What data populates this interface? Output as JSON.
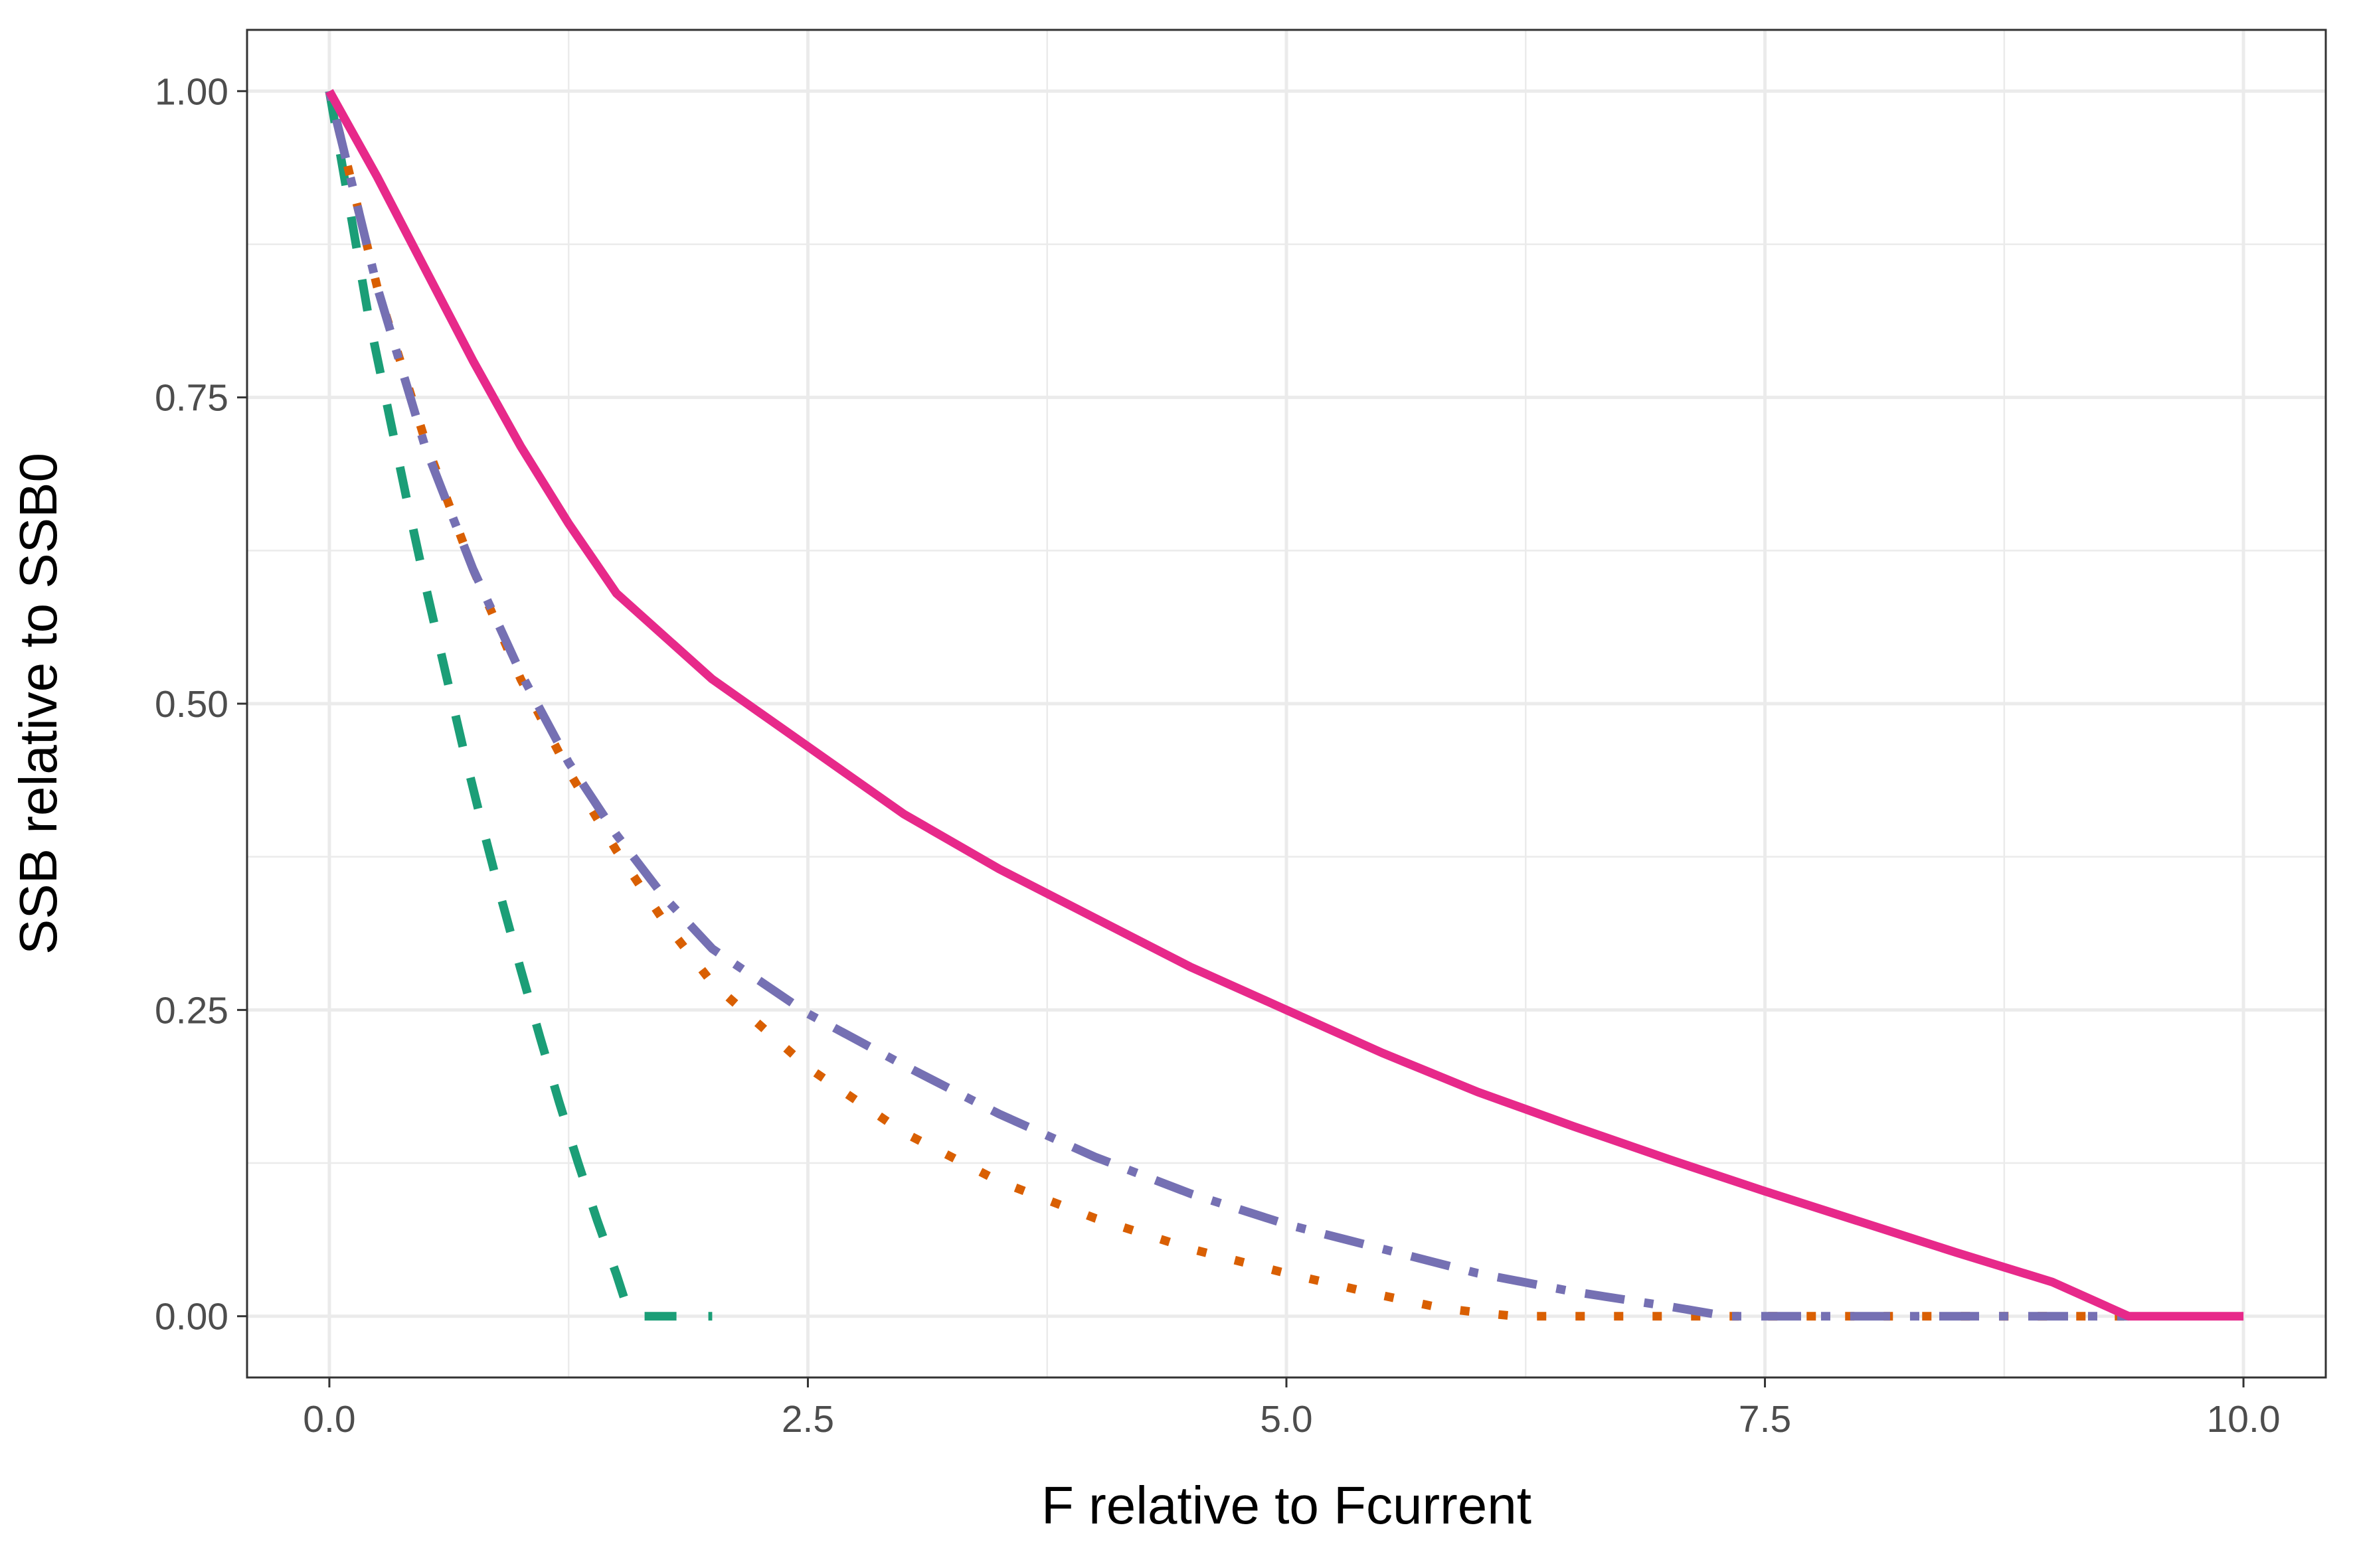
{
  "chart_data": {
    "type": "line",
    "title": "",
    "xlabel": "F relative to Fcurrent",
    "ylabel": "SSB relative to SSB0",
    "xlim": [
      -0.43,
      10.43
    ],
    "ylim": [
      -0.05,
      1.05
    ],
    "x_ticks": [
      "0.0",
      "2.5",
      "5.0",
      "7.5",
      "10.0"
    ],
    "x_tick_values": [
      0,
      2.5,
      5,
      7.5,
      10
    ],
    "y_ticks": [
      "0.00",
      "0.25",
      "0.50",
      "0.75",
      "1.00"
    ],
    "y_tick_values": [
      0,
      0.25,
      0.5,
      0.75,
      1
    ],
    "grid": true,
    "legend": "none",
    "series": [
      {
        "color": "#1B9E77",
        "linetype": "dashed",
        "x": [
          0,
          0.1,
          0.2,
          0.3,
          0.4,
          0.5,
          0.6,
          0.7,
          0.8,
          0.9,
          1.0,
          1.1,
          1.2,
          1.3,
          1.4,
          1.5,
          1.55,
          1.6,
          1.7,
          1.8,
          1.9,
          2.0
        ],
        "y": [
          1.0,
          0.91,
          0.82,
          0.745,
          0.67,
          0.598,
          0.53,
          0.463,
          0.4,
          0.34,
          0.283,
          0.228,
          0.175,
          0.125,
          0.078,
          0.034,
          0.01,
          0,
          0,
          0,
          0,
          0
        ]
      },
      {
        "color": "#D95F02",
        "linetype": "dotted",
        "x": [
          0,
          0.25,
          0.5,
          0.75,
          1.0,
          1.25,
          1.5,
          1.75,
          2.0,
          2.5,
          3.0,
          3.5,
          4.0,
          4.5,
          5.0,
          5.5,
          5.8,
          6.0,
          6.2,
          7.0,
          8.0,
          9.0,
          9.4
        ],
        "y": [
          1.0,
          0.84,
          0.715,
          0.61,
          0.52,
          0.445,
          0.38,
          0.322,
          0.272,
          0.203,
          0.15,
          0.11,
          0.08,
          0.055,
          0.035,
          0.017,
          0.007,
          0.003,
          0,
          0,
          0,
          0,
          0
        ]
      },
      {
        "color": "#7570B3",
        "linetype": "dotdash",
        "x": [
          0,
          0.25,
          0.5,
          0.75,
          1.0,
          1.25,
          1.5,
          1.75,
          2.0,
          2.5,
          3.0,
          3.5,
          4.0,
          4.5,
          5.0,
          5.5,
          6.0,
          6.5,
          7.0,
          7.3,
          8.0,
          9.0,
          9.4
        ],
        "y": [
          1.0,
          0.84,
          0.71,
          0.61,
          0.525,
          0.452,
          0.393,
          0.342,
          0.3,
          0.247,
          0.205,
          0.165,
          0.13,
          0.1,
          0.075,
          0.055,
          0.035,
          0.02,
          0.008,
          0,
          0,
          0,
          0
        ]
      },
      {
        "color": "#E7298A",
        "linetype": "solid",
        "x": [
          0,
          0.25,
          0.5,
          0.75,
          1.0,
          1.25,
          1.5,
          2.0,
          2.5,
          3.0,
          3.5,
          4.0,
          4.5,
          5.0,
          5.5,
          6.0,
          6.5,
          7.0,
          7.5,
          8.0,
          8.5,
          9.0,
          9.4,
          10.0
        ],
        "y": [
          1.0,
          0.93,
          0.855,
          0.78,
          0.71,
          0.647,
          0.59,
          0.52,
          0.465,
          0.41,
          0.365,
          0.325,
          0.285,
          0.25,
          0.215,
          0.183,
          0.155,
          0.128,
          0.102,
          0.077,
          0.052,
          0.028,
          0,
          0
        ]
      }
    ]
  }
}
